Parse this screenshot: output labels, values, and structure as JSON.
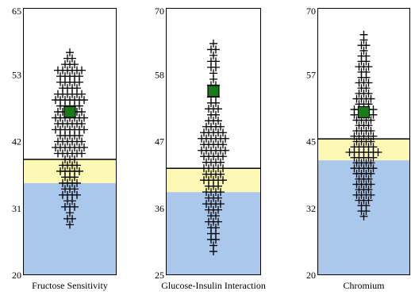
{
  "chart_data": [
    {
      "type": "scatter",
      "title": "",
      "xlabel": "Fructose Sensitivity",
      "ylabel": "",
      "ylim": [
        20,
        65
      ],
      "yticks": [
        "20",
        "31",
        "42",
        "53",
        "65"
      ],
      "bands": [
        {
          "name": "blue",
          "from": 20,
          "to": 35.5,
          "color": "#a9c8ec"
        },
        {
          "name": "yellow",
          "from": 35.5,
          "to": 39.5,
          "color": "#fdf8b4"
        }
      ],
      "threshold_line": 39.5,
      "marker": {
        "y": 47.5,
        "color": "#1a7a1a"
      },
      "points": [
        {
          "y": 28.5,
          "n": 1
        },
        {
          "y": 29.5,
          "n": 2
        },
        {
          "y": 30.5,
          "n": 1
        },
        {
          "y": 31.5,
          "n": 3
        },
        {
          "y": 32.5,
          "n": 2
        },
        {
          "y": 33.5,
          "n": 4
        },
        {
          "y": 34.5,
          "n": 3
        },
        {
          "y": 35.5,
          "n": 4
        },
        {
          "y": 36.5,
          "n": 3
        },
        {
          "y": 37.5,
          "n": 5
        },
        {
          "y": 38.5,
          "n": 4
        },
        {
          "y": 39.5,
          "n": 3
        },
        {
          "y": 40.5,
          "n": 6
        },
        {
          "y": 41.5,
          "n": 7
        },
        {
          "y": 42.5,
          "n": 6
        },
        {
          "y": 43.5,
          "n": 5
        },
        {
          "y": 44.5,
          "n": 7
        },
        {
          "y": 45.5,
          "n": 6
        },
        {
          "y": 46.5,
          "n": 7
        },
        {
          "y": 47.5,
          "n": 6
        },
        {
          "y": 48.5,
          "n": 5
        },
        {
          "y": 49.5,
          "n": 7
        },
        {
          "y": 50.5,
          "n": 6
        },
        {
          "y": 51.5,
          "n": 4
        },
        {
          "y": 52.5,
          "n": 5
        },
        {
          "y": 53.5,
          "n": 5
        },
        {
          "y": 54.5,
          "n": 6
        },
        {
          "y": 55.5,
          "n": 3
        },
        {
          "y": 56.5,
          "n": 2
        },
        {
          "y": 57.5,
          "n": 1
        }
      ]
    },
    {
      "type": "scatter",
      "title": "",
      "xlabel": "Glucose-Insulin Interaction",
      "ylabel": "",
      "ylim": [
        25,
        70
      ],
      "yticks": [
        "25",
        "36",
        "47",
        "58",
        "70"
      ],
      "bands": [
        {
          "name": "blue",
          "from": 25,
          "to": 39,
          "color": "#a9c8ec"
        },
        {
          "name": "yellow",
          "from": 39,
          "to": 43,
          "color": "#fdf8b4"
        }
      ],
      "threshold_line": 43,
      "marker": {
        "y": 56,
        "color": "#1a7a1a"
      },
      "points": [
        {
          "y": 29,
          "n": 1
        },
        {
          "y": 30,
          "n": 1
        },
        {
          "y": 31,
          "n": 2
        },
        {
          "y": 32,
          "n": 2
        },
        {
          "y": 33,
          "n": 2
        },
        {
          "y": 34,
          "n": 3
        },
        {
          "y": 35,
          "n": 2
        },
        {
          "y": 36,
          "n": 3
        },
        {
          "y": 37,
          "n": 4
        },
        {
          "y": 38,
          "n": 3
        },
        {
          "y": 39,
          "n": 4
        },
        {
          "y": 40,
          "n": 3
        },
        {
          "y": 41,
          "n": 5
        },
        {
          "y": 42,
          "n": 4
        },
        {
          "y": 43,
          "n": 5
        },
        {
          "y": 44,
          "n": 4
        },
        {
          "y": 45,
          "n": 5
        },
        {
          "y": 46,
          "n": 6
        },
        {
          "y": 47,
          "n": 5
        },
        {
          "y": 48,
          "n": 6
        },
        {
          "y": 49,
          "n": 5
        },
        {
          "y": 50,
          "n": 4
        },
        {
          "y": 51,
          "n": 3
        },
        {
          "y": 52,
          "n": 2
        },
        {
          "y": 53,
          "n": 3
        },
        {
          "y": 54,
          "n": 2
        },
        {
          "y": 55,
          "n": 2
        },
        {
          "y": 56,
          "n": 1
        },
        {
          "y": 57,
          "n": 2
        },
        {
          "y": 58,
          "n": 1
        },
        {
          "y": 59,
          "n": 1
        },
        {
          "y": 60,
          "n": 2
        },
        {
          "y": 61,
          "n": 2
        },
        {
          "y": 62,
          "n": 1
        },
        {
          "y": 63,
          "n": 2
        },
        {
          "y": 64,
          "n": 1
        }
      ]
    },
    {
      "type": "scatter",
      "title": "",
      "xlabel": "Chromium",
      "ylabel": "",
      "ylim": [
        20,
        70
      ],
      "yticks": [
        "20",
        "32",
        "45",
        "57",
        "70"
      ],
      "bands": [
        {
          "name": "blue",
          "from": 20,
          "to": 41.5,
          "color": "#a9c8ec"
        },
        {
          "name": "yellow",
          "from": 41.5,
          "to": 45.5,
          "color": "#fdf8b4"
        }
      ],
      "threshold_line": 45.5,
      "marker": {
        "y": 50.5,
        "color": "#1a7a1a"
      },
      "points": [
        {
          "y": 31,
          "n": 1
        },
        {
          "y": 32,
          "n": 2
        },
        {
          "y": 33,
          "n": 2
        },
        {
          "y": 34,
          "n": 3
        },
        {
          "y": 35,
          "n": 4
        },
        {
          "y": 36,
          "n": 3
        },
        {
          "y": 37,
          "n": 4
        },
        {
          "y": 38,
          "n": 3
        },
        {
          "y": 39,
          "n": 4
        },
        {
          "y": 40,
          "n": 5
        },
        {
          "y": 41,
          "n": 4
        },
        {
          "y": 42,
          "n": 5
        },
        {
          "y": 43,
          "n": 7
        },
        {
          "y": 44,
          "n": 5
        },
        {
          "y": 45,
          "n": 4
        },
        {
          "y": 46,
          "n": 5
        },
        {
          "y": 47,
          "n": 4
        },
        {
          "y": 48,
          "n": 3
        },
        {
          "y": 49,
          "n": 4
        },
        {
          "y": 50,
          "n": 5
        },
        {
          "y": 51,
          "n": 5
        },
        {
          "y": 52,
          "n": 3
        },
        {
          "y": 53,
          "n": 4
        },
        {
          "y": 54,
          "n": 3
        },
        {
          "y": 55,
          "n": 2
        },
        {
          "y": 56,
          "n": 3
        },
        {
          "y": 57,
          "n": 2
        },
        {
          "y": 58,
          "n": 2
        },
        {
          "y": 59,
          "n": 3
        },
        {
          "y": 60,
          "n": 2
        },
        {
          "y": 61,
          "n": 2
        },
        {
          "y": 62,
          "n": 1
        },
        {
          "y": 63,
          "n": 2
        },
        {
          "y": 64,
          "n": 1
        },
        {
          "y": 65,
          "n": 1
        }
      ]
    }
  ]
}
